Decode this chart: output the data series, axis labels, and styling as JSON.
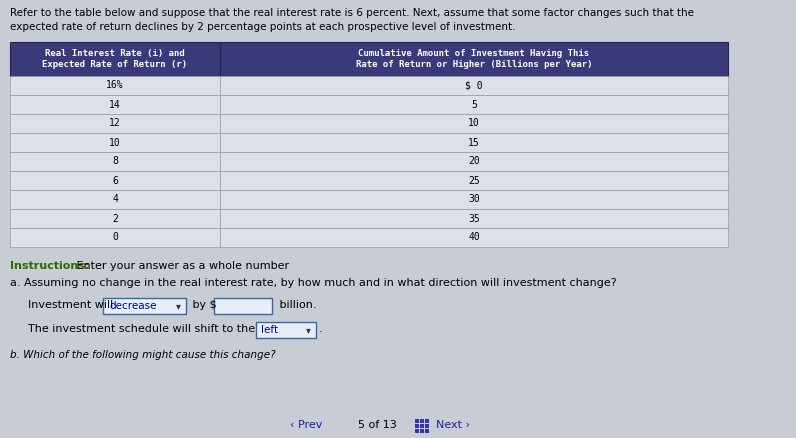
{
  "bg_color": "#c8ccd4",
  "intro_line1": "Refer to the table below and suppose that the real interest rate is 6 percent. Next, assume that some factor changes such that the",
  "intro_line2": "expected rate of return declines by 2 percentage points at each prospective level of investment.",
  "col1_header": "Real Interest Rate (i) and\nExpected Rate of Return (r)",
  "col2_header": "Cumulative Amount of Investment Having This\nRate of Return or Higher (Billions per Year)",
  "col1_data": [
    "16%",
    "14",
    "12",
    "10",
    "8",
    "6",
    "4",
    "2",
    "0"
  ],
  "col2_data": [
    "$ 0",
    "5",
    "10",
    "15",
    "20",
    "25",
    "30",
    "35",
    "40"
  ],
  "header_bg": "#3a3a7a",
  "header_fg": "#ffffff",
  "row_bg_light": "#dde0e8",
  "row_bg_dark": "#c8ccd4",
  "row_border": "#999999",
  "instructions_label": "Instructions:",
  "instructions_text": " Enter your answer as a whole number",
  "question_a": "a. Assuming no change in the real interest rate, by how much and in what direction will investment change?",
  "line1_pre": "Investment will ",
  "line1_dropdown": "decrease",
  "line1_mid": " by $",
  "line1_post": " billion.",
  "line2_pre": "The investment schedule will shift to the ",
  "line2_dropdown": "left",
  "line2_post": ".",
  "question_b": "b. Which of the following might cause this change?",
  "nav_prev": "‹ Prev",
  "nav_mid": "5 of 13",
  "nav_next": "Next ›",
  "instructions_color": "#2d6a00",
  "question_color": "#000000",
  "text_color": "#000000",
  "nav_color": "#1a1aaa",
  "dropdown_border": "#3366aa",
  "dropdown_bg": "#e8eef8",
  "dropdown_text": "#000099",
  "input_bg": "#e8eef8",
  "input_border": "#3366aa"
}
